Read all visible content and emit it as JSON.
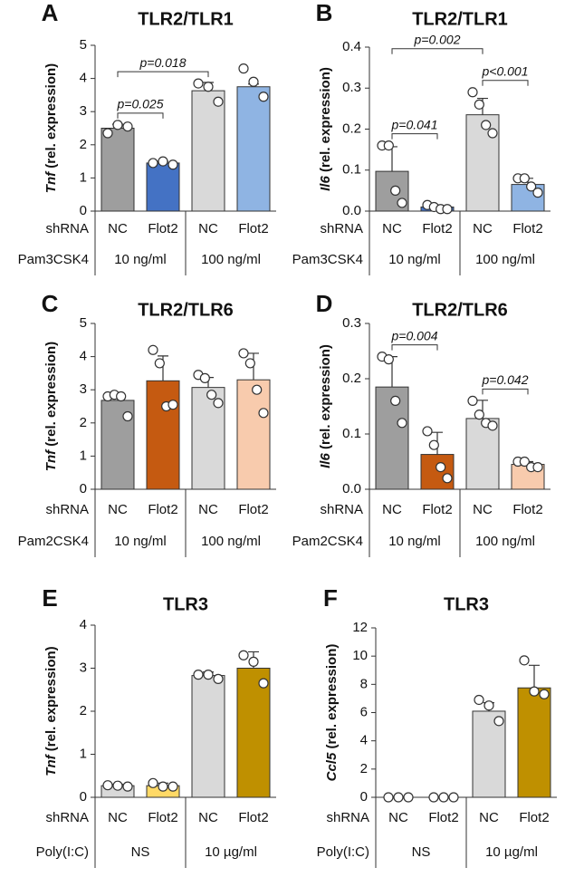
{
  "chart_data": [
    {
      "type": "bar",
      "panel": "A",
      "title": "TLR2/TLR1",
      "y_label_gene": "Tnf",
      "y_label": "(rel. expression)",
      "categories": [
        "NC",
        "Flot2",
        "NC",
        "Flot2"
      ],
      "row_label": "shRNA",
      "treatment": "Pam3CSK4",
      "groups": [
        "10 ng/ml",
        "100 ng/ml"
      ],
      "values": [
        2.5,
        1.45,
        3.63,
        3.75
      ],
      "errors": [
        0.12,
        0.05,
        0.25,
        0.08
      ],
      "points": [
        [
          2.35,
          2.6,
          2.55
        ],
        [
          1.45,
          1.5,
          1.4
        ],
        [
          3.85,
          3.75,
          3.3
        ],
        [
          4.3,
          3.9,
          3.45
        ]
      ],
      "colors": [
        "#9e9e9e",
        "#4472c4",
        "#d9d9d9",
        "#8fb4e3"
      ],
      "ylim": [
        0,
        5
      ],
      "yticks": [
        0,
        1,
        2,
        3,
        4,
        5
      ],
      "annotations": [
        {
          "text": "p=0.025",
          "from": 0,
          "to": 1
        },
        {
          "text": "p=0.018",
          "from": 0,
          "to": 2
        }
      ]
    },
    {
      "type": "bar",
      "panel": "B",
      "title": "TLR2/TLR1",
      "y_label_gene": "Il6",
      "y_label": "(rel. expression)",
      "categories": [
        "NC",
        "Flot2",
        "NC",
        "Flot2"
      ],
      "row_label": "shRNA",
      "treatment": "Pam3CSK4",
      "groups": [
        "10 ng/ml",
        "100 ng/ml"
      ],
      "values": [
        0.097,
        0.01,
        0.235,
        0.065
      ],
      "errors": [
        0.06,
        0.005,
        0.04,
        0.015
      ],
      "points": [
        [
          0.16,
          0.16,
          0.05,
          0.02
        ],
        [
          0.015,
          0.01,
          0.005,
          0.005
        ],
        [
          0.29,
          0.26,
          0.21,
          0.19
        ],
        [
          0.08,
          0.08,
          0.06,
          0.045
        ]
      ],
      "colors": [
        "#9e9e9e",
        "#4472c4",
        "#d9d9d9",
        "#8fb4e3"
      ],
      "ylim": [
        0,
        0.4
      ],
      "yticks": [
        {
          "value": 0,
          "label": "0.0"
        },
        0.1,
        0.2,
        0.3,
        0.4
      ],
      "annotations": [
        {
          "text": "p=0.041",
          "from": 0,
          "to": 1
        },
        {
          "text": "p<0.001",
          "from": 2,
          "to": 3
        },
        {
          "text": "p=0.002",
          "from": 0,
          "to": 2
        }
      ]
    },
    {
      "type": "bar",
      "panel": "C",
      "title": "TLR2/TLR6",
      "y_label_gene": "Tnf",
      "y_label": "(rel. expression)",
      "categories": [
        "NC",
        "Flot2",
        "NC",
        "Flot2"
      ],
      "row_label": "shRNA",
      "treatment": "Pam2CSK4",
      "groups": [
        "10 ng/ml",
        "100  ng/ml"
      ],
      "values": [
        2.68,
        3.27,
        3.07,
        3.3
      ],
      "errors": [
        0.15,
        0.75,
        0.3,
        0.8
      ],
      "points": [
        [
          2.8,
          2.85,
          2.8,
          2.2
        ],
        [
          4.2,
          3.8,
          2.5,
          2.55
        ],
        [
          3.45,
          3.35,
          2.85,
          2.6
        ],
        [
          4.1,
          3.8,
          3.0,
          2.3
        ]
      ],
      "colors": [
        "#9e9e9e",
        "#c55a11",
        "#d9d9d9",
        "#f8cbad"
      ],
      "ylim": [
        0,
        5
      ],
      "yticks": [
        0,
        1,
        2,
        3,
        4,
        5
      ],
      "annotations": []
    },
    {
      "type": "bar",
      "panel": "D",
      "title": "TLR2/TLR6",
      "y_label_gene": "Il6",
      "y_label": "(rel. expression)",
      "categories": [
        "NC",
        "Flot2",
        "NC",
        "Flot2"
      ],
      "row_label": "shRNA",
      "treatment": "Pam2CSK4",
      "groups": [
        "10 ng/ml",
        "100 ng/ml"
      ],
      "values": [
        0.185,
        0.063,
        0.128,
        0.045
      ],
      "errors": [
        0.055,
        0.04,
        0.033,
        0.005
      ],
      "points": [
        [
          0.24,
          0.235,
          0.16,
          0.12
        ],
        [
          0.105,
          0.08,
          0.04,
          0.02
        ],
        [
          0.16,
          0.135,
          0.12,
          0.115
        ],
        [
          0.05,
          0.05,
          0.04,
          0.04
        ]
      ],
      "colors": [
        "#9e9e9e",
        "#c55a11",
        "#d9d9d9",
        "#f8cbad"
      ],
      "ylim": [
        0,
        0.3
      ],
      "yticks": [
        {
          "value": 0,
          "label": "0.0"
        },
        0.1,
        0.2,
        0.3
      ],
      "annotations": [
        {
          "text": "p=0.004",
          "from": 0,
          "to": 1
        },
        {
          "text": "p=0.042",
          "from": 2,
          "to": 3
        }
      ]
    },
    {
      "type": "bar",
      "panel": "E",
      "title": "TLR3",
      "y_label_gene": "Tnf",
      "y_label": "(rel. expression)",
      "categories": [
        "NC",
        "Flot2",
        "NC",
        "Flot2"
      ],
      "row_label": "shRNA",
      "treatment": "Poly(I:C)",
      "groups": [
        "NS",
        "10 µg/ml"
      ],
      "values": [
        0.27,
        0.27,
        2.83,
        3.0
      ],
      "errors": [
        0.03,
        0.06,
        0.08,
        0.38
      ],
      "points": [
        [
          0.28,
          0.27,
          0.25
        ],
        [
          0.33,
          0.25,
          0.25
        ],
        [
          2.85,
          2.85,
          2.75
        ],
        [
          3.3,
          3.15,
          2.65
        ]
      ],
      "colors": [
        "#d9d9d9",
        "#ffd966",
        "#d9d9d9",
        "#bf9000"
      ],
      "ylim": [
        0,
        4
      ],
      "yticks": [
        0,
        1,
        2,
        3,
        4
      ],
      "annotations": []
    },
    {
      "type": "bar",
      "panel": "F",
      "title": "TLR3",
      "y_label_gene": "Ccl5",
      "y_label": "(rel. expression)",
      "categories": [
        "NC",
        "Flot2",
        "NC",
        "Flot2"
      ],
      "row_label": "shRNA",
      "treatment": "Poly(I:C)",
      "groups": [
        "NS",
        "10 µg/ml"
      ],
      "values": [
        0,
        0,
        6.1,
        7.75
      ],
      "errors": [
        0,
        0,
        0.6,
        1.6
      ],
      "points": [
        [
          0,
          0,
          0
        ],
        [
          0,
          0,
          0
        ],
        [
          6.9,
          6.5,
          5.4
        ],
        [
          9.7,
          7.5,
          7.3
        ]
      ],
      "colors": [
        "#d9d9d9",
        "#ffd966",
        "#d9d9d9",
        "#bf9000"
      ],
      "ylim": [
        0,
        12
      ],
      "yticks": [
        0,
        2,
        4,
        6,
        8,
        10,
        12
      ],
      "annotations": []
    }
  ]
}
